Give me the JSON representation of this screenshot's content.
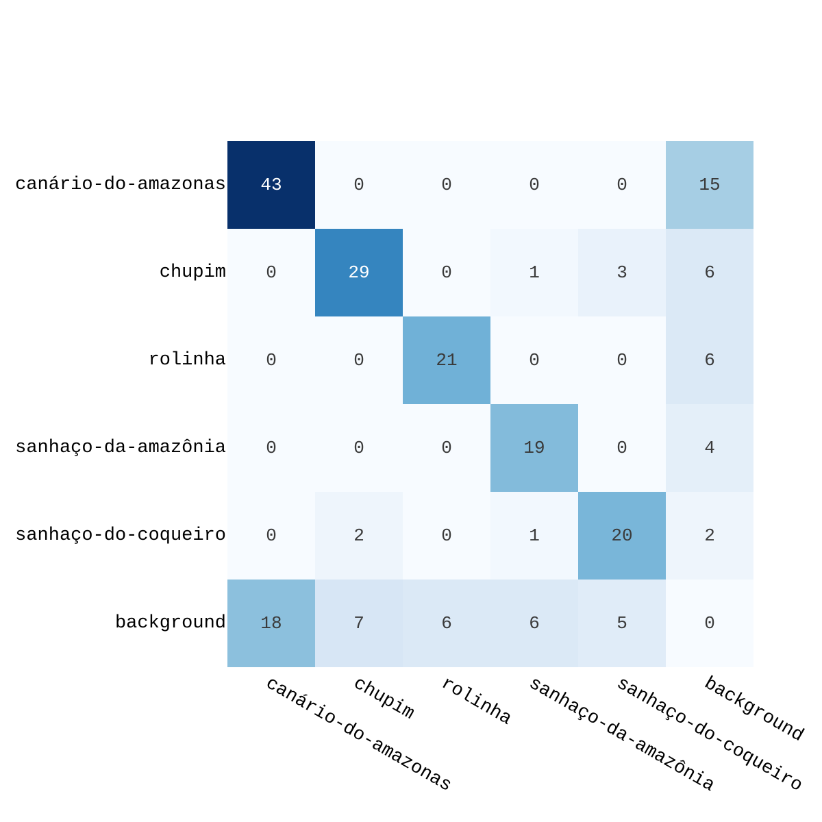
{
  "chart_data": {
    "type": "heatmap",
    "title": "",
    "xlabel": "",
    "ylabel": "",
    "colormap": "Blues",
    "color_low": "#f7fbff",
    "color_high": "#08306b",
    "text_dark": "#3a3a3a",
    "text_light": "#ffffff",
    "x_categories": [
      "canário-do-amazonas",
      "chupim",
      "rolinha",
      "sanhaço-da-amazônia",
      "sanhaço-do-coqueiro",
      "background"
    ],
    "y_categories": [
      "canário-do-amazonas",
      "chupim",
      "rolinha",
      "sanhaço-da-amazônia",
      "sanhaço-do-coqueiro",
      "background"
    ],
    "values": [
      [
        43,
        0,
        0,
        0,
        0,
        15
      ],
      [
        0,
        29,
        0,
        1,
        3,
        6
      ],
      [
        0,
        0,
        21,
        0,
        0,
        6
      ],
      [
        0,
        0,
        0,
        19,
        0,
        4
      ],
      [
        0,
        2,
        0,
        1,
        20,
        2
      ],
      [
        18,
        7,
        6,
        6,
        5,
        0
      ]
    ],
    "value_range": [
      0,
      43
    ],
    "grid": false,
    "legend": "none",
    "x_tick_rotation": "slanted down-right"
  }
}
